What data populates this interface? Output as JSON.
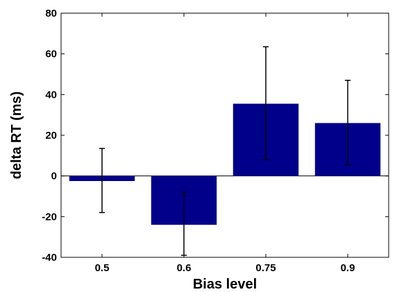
{
  "chart_data": {
    "type": "bar",
    "categories": [
      "0.5",
      "0.6",
      "0.75",
      "0.9"
    ],
    "values": [
      -2.5,
      -24,
      35.5,
      26
    ],
    "error_low": [
      -18,
      -39,
      8,
      5.5
    ],
    "error_high": [
      13.5,
      -8,
      63.5,
      47
    ],
    "xlabel": "Bias level",
    "ylabel": "delta RT (ms)",
    "ylim": [
      -40,
      80
    ],
    "yticks": [
      -40,
      -20,
      0,
      20,
      40,
      60,
      80
    ],
    "xlim": [
      0.5,
      4.5
    ],
    "bar_color": "#00008b",
    "zero_line": true,
    "grid": false
  }
}
